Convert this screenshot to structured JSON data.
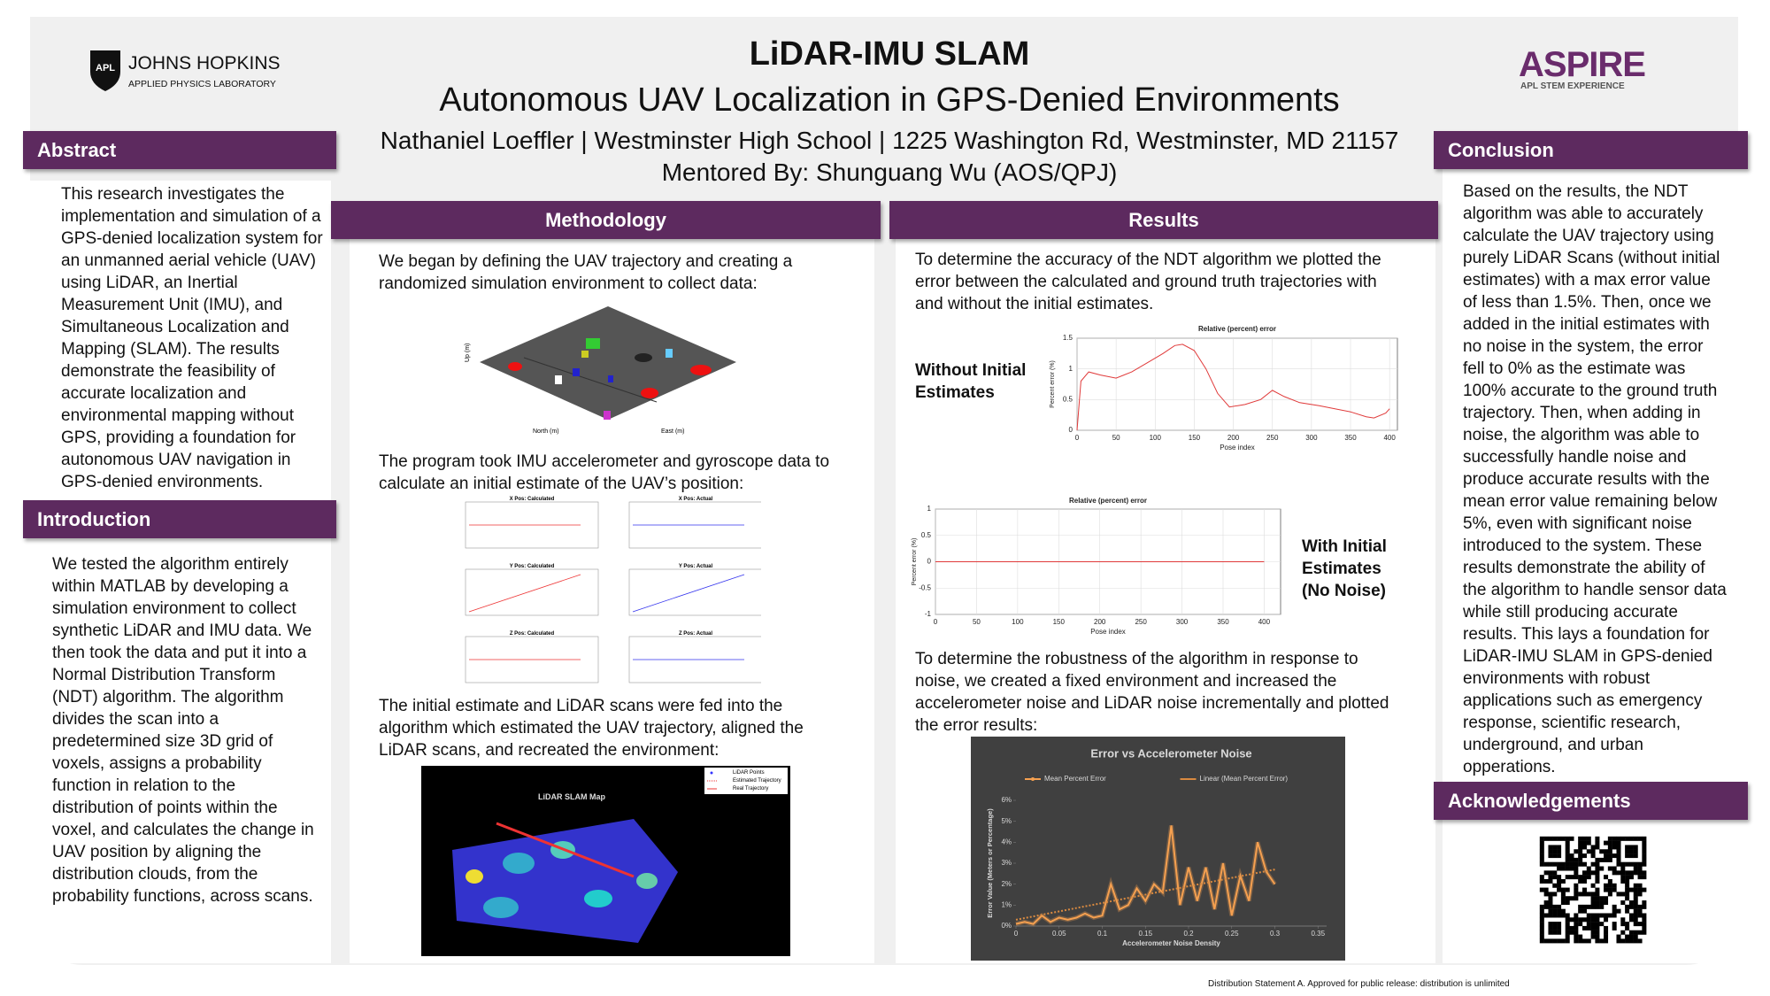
{
  "header": {
    "title": "LiDAR-IMU SLAM",
    "subtitle": "Autonomous UAV Localization in GPS-Denied Environments",
    "authors": "Nathaniel Loeffler | Westminster High School | 1225 Washington Rd, Westminster, MD 21157",
    "mentor": "Mentored By: Shunguang Wu (AOS/QPJ)"
  },
  "logos": {
    "left": {
      "mark": "APL",
      "name": "JOHNS HOPKINS",
      "sub": "APPLIED PHYSICS LABORATORY"
    },
    "right": {
      "name": "ASPIRE",
      "sub": "APL STEM EXPERIENCE"
    }
  },
  "abstract": {
    "heading": "Abstract",
    "text": "This research investigates the implementation and simulation of a GPS-denied localization system for an unmanned aerial vehicle (UAV) using LiDAR, an Inertial Measurement Unit (IMU), and Simultaneous Localization and Mapping (SLAM). The results demonstrate the feasibility of accurate localization and environmental mapping without GPS, providing a foundation for autonomous UAV navigation in GPS-denied environments."
  },
  "introduction": {
    "heading": "Introduction",
    "text": "We tested the algorithm entirely within MATLAB by developing a simulation environment to collect synthetic LiDAR and IMU data. We then took the data and put it into a Normal Distribution Transform (NDT) algorithm. The algorithm divides the scan into a predetermined size 3D grid of voxels, assigns a probability function in relation to the distribution of points within the voxel, and calculates the change in UAV position by aligning the distribution clouds, from the probability functions, across scans."
  },
  "methodology": {
    "heading": "Methodology",
    "paragraphs": [
      "We began by defining the UAV trajectory and creating a randomized simulation environment to collect data:",
      "The program took IMU accelerometer and gyroscope data to calculate an initial estimate of the UAV’s position:",
      "The initial estimate and LiDAR scans were fed into the algorithm which estimated the UAV trajectory, aligned the LiDAR scans, and recreated the environment:"
    ],
    "figures": {
      "environment": {
        "axis_labels": [
          "Up (m)",
          "North (m)",
          "East (m)"
        ]
      },
      "imu_plots": {
        "titles": [
          "X Pos: Calculated",
          "X Pos: Actual",
          "Y Pos: Calculated",
          "Y Pos: Actual",
          "Z Pos: Calculated",
          "Z Pos: Actual"
        ]
      },
      "slam_map": {
        "title": "LiDAR SLAM Map",
        "legend": [
          "LiDAR Points",
          "Estimated Trajectory",
          "Real Trajectory"
        ]
      }
    }
  },
  "results": {
    "heading": "Results",
    "paragraphs": [
      "To determine the accuracy of the NDT algorithm we plotted the error between the calculated and ground truth trajectories with and without the initial estimates.",
      "To determine the robustness of the algorithm in response to noise, we created a fixed environment and increased the accelerometer noise and LiDAR noise incrementally and plotted the error results:"
    ],
    "labels": [
      "Without Initial Estimates",
      "With Initial Estimates (No Noise)"
    ],
    "charts": [
      {
        "type": "line",
        "title": "Relative (percent) error",
        "xlabel": "Pose index",
        "ylabel": "Percent error (%)",
        "xlim": [
          0,
          410
        ],
        "ylim": [
          0,
          1.5
        ],
        "xticks": [
          0,
          50,
          100,
          150,
          200,
          250,
          300,
          350,
          400
        ],
        "yticks": [
          0,
          0.5,
          1,
          1.5
        ],
        "grid": true,
        "series": [
          {
            "color": "#e03a3a",
            "x": [
              0,
              5,
              15,
              30,
              50,
              70,
              90,
              110,
              125,
              135,
              150,
              165,
              180,
              195,
              215,
              235,
              250,
              265,
              285,
              310,
              330,
              350,
              370,
              380,
              395,
              400
            ],
            "values": [
              0,
              0.8,
              0.95,
              0.9,
              0.85,
              0.95,
              1.1,
              1.25,
              1.38,
              1.4,
              1.3,
              1.0,
              0.6,
              0.38,
              0.42,
              0.5,
              0.65,
              0.55,
              0.45,
              0.4,
              0.35,
              0.3,
              0.22,
              0.2,
              0.28,
              0.35
            ]
          }
        ]
      },
      {
        "type": "line",
        "title": "Relative (percent) error",
        "xlabel": "Pose index",
        "ylabel": "Percent error (%)",
        "xlim": [
          0,
          420
        ],
        "ylim": [
          -1,
          1
        ],
        "xticks": [
          0,
          50,
          100,
          150,
          200,
          250,
          300,
          350,
          400
        ],
        "yticks": [
          -1,
          -0.5,
          0,
          0.5,
          1
        ],
        "grid": true,
        "series": [
          {
            "color": "#e03a3a",
            "x": [
              0,
              400
            ],
            "values": [
              0,
              0
            ]
          }
        ]
      },
      {
        "type": "line",
        "title": "Error vs Accelerometer Noise",
        "xlabel": "Accelerometer Noise Density",
        "ylabel": "Error Value (Meters or Percentage)",
        "background": "#404040",
        "text_color": "#d9d9d9",
        "legend": "top",
        "grid": false,
        "xlim": [
          0,
          0.36
        ],
        "ylim": [
          0,
          6
        ],
        "xticks": [
          0,
          0.05,
          0.1,
          0.15,
          0.2,
          0.25,
          0.3,
          0.35
        ],
        "yticks": [
          {
            "value": 0,
            "label": "0%"
          },
          {
            "value": 1,
            "label": "1%"
          },
          {
            "value": 2,
            "label": "2%"
          },
          {
            "value": 3,
            "label": "3%"
          },
          {
            "value": 4,
            "label": "4%"
          },
          {
            "value": 5,
            "label": "5%"
          },
          {
            "value": 6,
            "label": "6%"
          }
        ],
        "series": [
          {
            "name": "Mean Percent Error",
            "color": "#f5a050",
            "x": [
              0,
              0.01,
              0.02,
              0.03,
              0.04,
              0.05,
              0.06,
              0.07,
              0.08,
              0.09,
              0.1,
              0.11,
              0.12,
              0.13,
              0.14,
              0.15,
              0.16,
              0.17,
              0.18,
              0.19,
              0.2,
              0.21,
              0.22,
              0.23,
              0.24,
              0.25,
              0.26,
              0.27,
              0.28,
              0.29,
              0.3
            ],
            "values": [
              0.1,
              0.2,
              0.1,
              0.5,
              0.2,
              0.4,
              0.3,
              0.4,
              0.6,
              0.4,
              0.5,
              2.0,
              0.8,
              1.0,
              1.8,
              1.2,
              2.0,
              1.6,
              4.8,
              1.0,
              2.8,
              1.2,
              2.8,
              0.8,
              3.0,
              0.5,
              2.4,
              1.2,
              4.0,
              2.6,
              2.0
            ]
          },
          {
            "name": "Linear (Mean Percent Error)",
            "color": "#d98a40",
            "style": "dotted",
            "x": [
              0,
              0.3
            ],
            "values": [
              0.3,
              2.7
            ]
          }
        ]
      }
    ]
  },
  "conclusion": {
    "heading": "Conclusion",
    "text": "Based on the results, the NDT algorithm was able to accurately calculate the UAV trajectory using purely LiDAR Scans (without initial estimates) with a max error value of less than 1.5%. Then, once we added in the initial estimates with no noise in the system, the error fell to 0% as the estimate was 100% accurate to the ground truth trajectory. Then, when adding in noise, the algorithm was able to successfully handle noise and produce accurate results with the mean error value remaining below 5%, even with significant noise introduced to the system. These results demonstrate the ability of the algorithm to handle sensor data while still producing accurate results. This lays a foundation for LiDAR-IMU SLAM in GPS-denied environments with robust applications such as emergency response, scientific research, underground, and urban opperations."
  },
  "acknowledgements": {
    "heading": "Acknowledgements"
  },
  "footer": "Distribution Statement A. Approved for public release: distribution is unlimited"
}
